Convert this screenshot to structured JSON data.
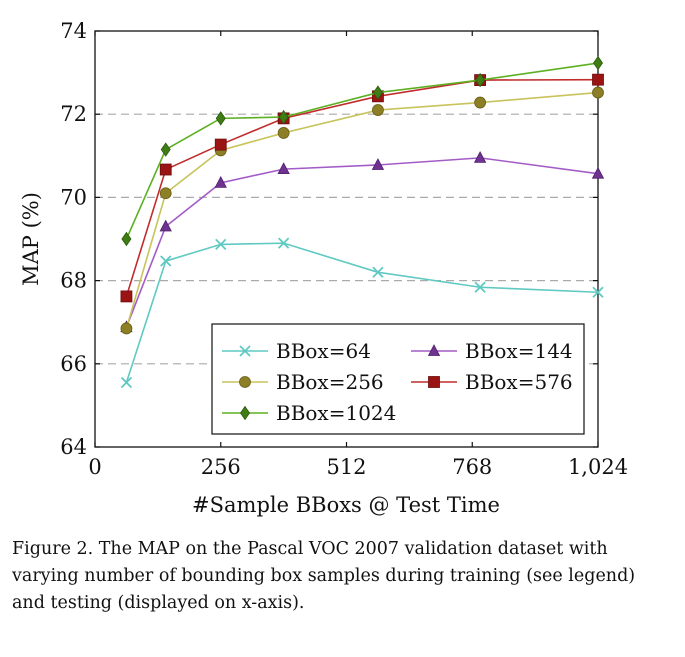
{
  "chart_data": {
    "type": "line",
    "title": "",
    "xlabel": "#Sample BBoxs @ Test Time",
    "ylabel": "MAP (%)",
    "xlim": [
      0,
      1024
    ],
    "ylim": [
      64,
      74
    ],
    "xticks": [
      0,
      256,
      512,
      768,
      1024
    ],
    "xtick_labels": [
      "0",
      "256",
      "512",
      "768",
      "1,024"
    ],
    "yticks": [
      64,
      66,
      68,
      70,
      72,
      74
    ],
    "ytick_labels": [
      "64",
      "66",
      "68",
      "70",
      "72",
      "74"
    ],
    "grid": "horizontal dashed",
    "legend_position": "bottom-right",
    "x": [
      64,
      144,
      256,
      384,
      576,
      784,
      1024
    ],
    "series": [
      {
        "name": "BBox=64",
        "color": "#5fc9c2",
        "marker": "x",
        "values": [
          65.55,
          68.47,
          68.87,
          68.9,
          68.2,
          67.84,
          67.72
        ]
      },
      {
        "name": "BBox=144",
        "color": "#a35cc7",
        "marker": "triangle",
        "values": [
          66.88,
          69.3,
          70.35,
          70.68,
          70.78,
          70.95,
          70.57
        ]
      },
      {
        "name": "BBox=256",
        "color": "#c8c45b",
        "marker": "circle",
        "values": [
          66.85,
          70.1,
          71.13,
          71.55,
          72.1,
          72.28,
          72.52
        ]
      },
      {
        "name": "BBox=576",
        "color": "#c12d2d",
        "marker": "square",
        "values": [
          67.62,
          70.67,
          71.27,
          71.9,
          72.43,
          72.82,
          72.83
        ]
      },
      {
        "name": "BBox=1024",
        "color": "#5cb021",
        "marker": "diamond",
        "values": [
          69.0,
          71.15,
          71.9,
          71.93,
          72.52,
          72.82,
          73.23
        ]
      }
    ]
  },
  "caption": "Figure 2. The MAP on the Pascal VOC 2007 validation dataset with varying number of bounding box samples during training (see legend) and testing (displayed on x-axis).",
  "colors": {
    "marker_circle_fill": "#8c7f26",
    "marker_square_fill": "#9a1414",
    "marker_diamond_fill": "#3f7d14",
    "marker_triangle_fill": "#6f3291",
    "grid": "#aaaaaa"
  }
}
